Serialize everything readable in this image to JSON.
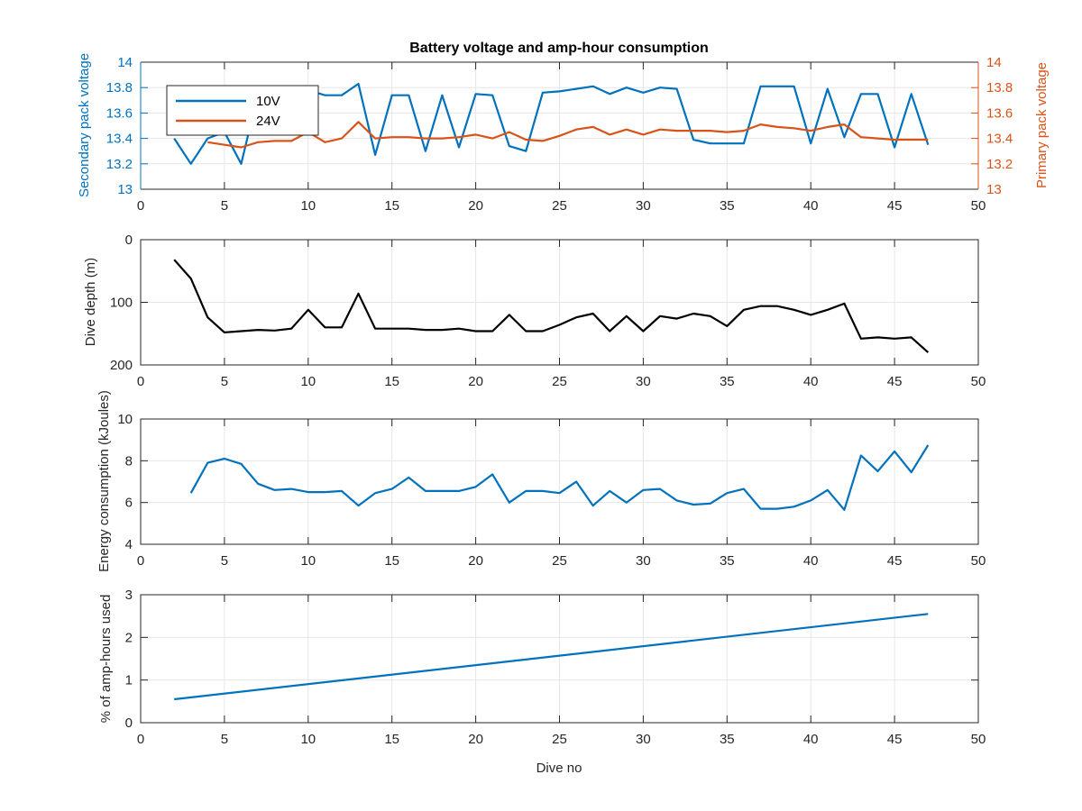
{
  "chart_data": [
    {
      "type": "line",
      "title": "Battery voltage and amp-hour consumption",
      "xlabel": "",
      "ylabel": "Secondary pack voltage",
      "ylabel_right": "Primary pack voltage",
      "xlim": [
        0,
        50
      ],
      "ylim": [
        13,
        14
      ],
      "ylim_right": [
        13,
        14
      ],
      "x_ticks": [
        "0",
        "5",
        "10",
        "15",
        "20",
        "25",
        "30",
        "35",
        "40",
        "45",
        "50"
      ],
      "y_ticks": [
        "13",
        "13.2",
        "13.4",
        "13.6",
        "13.8",
        "14"
      ],
      "y_ticks_right": [
        "13",
        "13.2",
        "13.4",
        "13.6",
        "13.8",
        "14"
      ],
      "grid": true,
      "legend": "top-left",
      "colors": {
        "left_axis": "#0072BD",
        "right_axis": "#D95319"
      },
      "series": [
        {
          "name": "10V",
          "axis": "left",
          "color": "#0072BD",
          "x": [
            2,
            3,
            4,
            5,
            6,
            7,
            8,
            9,
            10,
            11,
            12,
            13,
            14,
            15,
            16,
            17,
            18,
            19,
            20,
            21,
            22,
            23,
            24,
            25,
            26,
            27,
            28,
            29,
            30,
            31,
            32,
            33,
            34,
            35,
            36,
            37,
            38,
            39,
            40,
            41,
            42,
            43,
            44,
            45,
            46,
            47
          ],
          "y": [
            13.4,
            13.2,
            13.4,
            13.45,
            13.2,
            13.75,
            13.74,
            13.74,
            13.78,
            13.74,
            13.74,
            13.83,
            13.27,
            13.74,
            13.74,
            13.3,
            13.74,
            13.33,
            13.75,
            13.74,
            13.34,
            13.3,
            13.76,
            13.77,
            13.79,
            13.81,
            13.75,
            13.8,
            13.76,
            13.8,
            13.79,
            13.39,
            13.36,
            13.36,
            13.36,
            13.81,
            13.81,
            13.81,
            13.36,
            13.79,
            13.41,
            13.75,
            13.75,
            13.33,
            13.75,
            13.35
          ]
        },
        {
          "name": "24V",
          "axis": "right",
          "color": "#D95319",
          "x": [
            4,
            5,
            6,
            7,
            8,
            9,
            10,
            11,
            12,
            13,
            14,
            15,
            16,
            17,
            18,
            19,
            20,
            21,
            22,
            23,
            24,
            25,
            26,
            27,
            28,
            29,
            30,
            31,
            32,
            33,
            34,
            35,
            36,
            37,
            38,
            39,
            40,
            41,
            42,
            43,
            44,
            45,
            46,
            47
          ],
          "y": [
            13.37,
            13.35,
            13.33,
            13.37,
            13.38,
            13.38,
            13.45,
            13.37,
            13.4,
            13.53,
            13.4,
            13.41,
            13.41,
            13.4,
            13.4,
            13.41,
            13.43,
            13.4,
            13.45,
            13.39,
            13.38,
            13.42,
            13.47,
            13.49,
            13.43,
            13.47,
            13.43,
            13.47,
            13.46,
            13.46,
            13.46,
            13.45,
            13.46,
            13.51,
            13.49,
            13.48,
            13.46,
            13.49,
            13.51,
            13.41,
            13.4,
            13.39,
            13.39,
            13.39
          ]
        }
      ]
    },
    {
      "type": "line",
      "title": "",
      "xlabel": "",
      "ylabel": "Dive depth (m)",
      "xlim": [
        0,
        50
      ],
      "ylim": [
        0,
        200
      ],
      "y_reversed": true,
      "x_ticks": [
        "0",
        "5",
        "10",
        "15",
        "20",
        "25",
        "30",
        "35",
        "40",
        "45",
        "50"
      ],
      "y_ticks": [
        "0",
        "100",
        "200"
      ],
      "grid": true,
      "series": [
        {
          "color": "#000000",
          "x": [
            2,
            3,
            4,
            5,
            6,
            7,
            8,
            9,
            10,
            11,
            12,
            13,
            14,
            15,
            16,
            17,
            18,
            19,
            20,
            21,
            22,
            23,
            24,
            25,
            26,
            27,
            28,
            29,
            30,
            31,
            32,
            33,
            34,
            35,
            36,
            37,
            38,
            39,
            40,
            41,
            42,
            43,
            44,
            45,
            46,
            47
          ],
          "y": [
            32,
            62,
            124,
            148,
            146,
            144,
            145,
            142,
            112,
            140,
            140,
            86,
            142,
            142,
            142,
            144,
            144,
            142,
            146,
            146,
            120,
            146,
            146,
            136,
            124,
            118,
            146,
            122,
            146,
            122,
            126,
            118,
            122,
            138,
            112,
            106,
            106,
            112,
            120,
            112,
            102,
            158,
            156,
            158,
            156,
            180
          ]
        }
      ]
    },
    {
      "type": "line",
      "title": "",
      "xlabel": "",
      "ylabel": "Energy consumption (kJoules)",
      "xlim": [
        0,
        50
      ],
      "ylim": [
        4,
        10
      ],
      "x_ticks": [
        "0",
        "5",
        "10",
        "15",
        "20",
        "25",
        "30",
        "35",
        "40",
        "45",
        "50"
      ],
      "y_ticks": [
        "4",
        "6",
        "8",
        "10"
      ],
      "grid": true,
      "series": [
        {
          "color": "#0072BD",
          "x": [
            3,
            4,
            5,
            6,
            7,
            8,
            9,
            10,
            11,
            12,
            13,
            14,
            15,
            16,
            17,
            18,
            19,
            20,
            21,
            22,
            23,
            24,
            25,
            26,
            27,
            28,
            29,
            30,
            31,
            32,
            33,
            34,
            35,
            36,
            37,
            38,
            39,
            40,
            41,
            42,
            43,
            44,
            45,
            46,
            47
          ],
          "y": [
            6.45,
            7.9,
            8.1,
            7.85,
            6.9,
            6.6,
            6.65,
            6.5,
            6.5,
            6.55,
            5.85,
            6.45,
            6.65,
            7.2,
            6.55,
            6.55,
            6.55,
            6.75,
            7.35,
            6.0,
            6.55,
            6.55,
            6.45,
            7.0,
            5.85,
            6.55,
            6.0,
            6.6,
            6.65,
            6.1,
            5.9,
            5.95,
            6.45,
            6.65,
            5.7,
            5.7,
            5.8,
            6.1,
            6.6,
            5.65,
            8.25,
            7.5,
            8.45,
            7.45,
            8.75
          ]
        }
      ]
    },
    {
      "type": "line",
      "title": "",
      "xlabel": "Dive no",
      "ylabel": "% of amp-hours used",
      "xlim": [
        0,
        50
      ],
      "ylim": [
        0,
        3
      ],
      "x_ticks": [
        "0",
        "5",
        "10",
        "15",
        "20",
        "25",
        "30",
        "35",
        "40",
        "45",
        "50"
      ],
      "y_ticks": [
        "0",
        "1",
        "2",
        "3"
      ],
      "grid": true,
      "series": [
        {
          "color": "#0072BD",
          "x": [
            2,
            47
          ],
          "y": [
            0.55,
            2.55
          ]
        }
      ]
    }
  ]
}
